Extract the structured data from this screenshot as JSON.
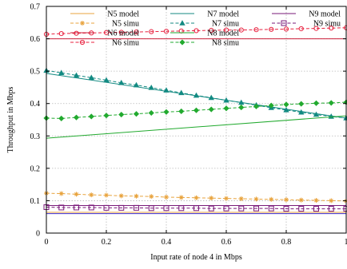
{
  "chart_data": {
    "type": "line",
    "title": "",
    "xlabel": "Input rate of node 4 in Mbps",
    "ylabel": "Throughput in Mbps",
    "xlim": [
      0,
      1
    ],
    "ylim": [
      0,
      0.7
    ],
    "xticks": [
      0,
      0.2,
      0.4,
      0.6,
      0.8,
      1
    ],
    "yticks": [
      0,
      0.1,
      0.2,
      0.3,
      0.4,
      0.5,
      0.6,
      0.7
    ],
    "grid": true,
    "legend": "top, inside plot",
    "series": [
      {
        "name": "N5 model",
        "color": "#e8a33d",
        "style": "solid",
        "marker": "none",
        "x": [
          0,
          1
        ],
        "y": [
          0.064,
          0.064
        ]
      },
      {
        "name": "N5 simu",
        "color": "#e8a33d",
        "style": "dashed",
        "marker": "asterisk",
        "x": [
          0,
          0.05,
          0.1,
          0.15,
          0.2,
          0.25,
          0.3,
          0.35,
          0.4,
          0.45,
          0.5,
          0.55,
          0.6,
          0.65,
          0.7,
          0.75,
          0.8,
          0.85,
          0.9,
          0.95,
          1.0
        ],
        "y": [
          0.123,
          0.122,
          0.12,
          0.118,
          0.117,
          0.115,
          0.114,
          0.113,
          0.111,
          0.11,
          0.109,
          0.108,
          0.107,
          0.106,
          0.105,
          0.104,
          0.103,
          0.102,
          0.101,
          0.1,
          0.099
        ]
      },
      {
        "name": "N6 model",
        "color": "#cc1f3a",
        "style": "solid",
        "marker": "none",
        "x": [
          0,
          1
        ],
        "y": [
          0.6,
          0.6
        ]
      },
      {
        "name": "N6 simu",
        "color": "#e8213f",
        "style": "dashed",
        "marker": "circle",
        "x": [
          0,
          0.05,
          0.1,
          0.15,
          0.2,
          0.25,
          0.3,
          0.35,
          0.4,
          0.45,
          0.5,
          0.55,
          0.6,
          0.65,
          0.7,
          0.75,
          0.8,
          0.85,
          0.9,
          0.95,
          1.0
        ],
        "y": [
          0.614,
          0.616,
          0.617,
          0.618,
          0.619,
          0.62,
          0.621,
          0.622,
          0.623,
          0.624,
          0.625,
          0.626,
          0.627,
          0.627,
          0.628,
          0.629,
          0.63,
          0.631,
          0.632,
          0.633,
          0.634
        ]
      },
      {
        "name": "N7 model",
        "color": "#138a82",
        "style": "solid",
        "marker": "none",
        "x": [
          0,
          1
        ],
        "y": [
          0.493,
          0.355
        ]
      },
      {
        "name": "N7 simu",
        "color": "#138a82",
        "style": "dashed",
        "marker": "triangle",
        "x": [
          0,
          0.05,
          0.1,
          0.15,
          0.2,
          0.25,
          0.3,
          0.35,
          0.4,
          0.45,
          0.5,
          0.55,
          0.6,
          0.65,
          0.7,
          0.75,
          0.8,
          0.85,
          0.9,
          0.95,
          1.0
        ],
        "y": [
          0.502,
          0.495,
          0.487,
          0.48,
          0.472,
          0.464,
          0.457,
          0.449,
          0.441,
          0.433,
          0.425,
          0.418,
          0.41,
          0.403,
          0.395,
          0.387,
          0.38,
          0.373,
          0.366,
          0.36,
          0.355
        ]
      },
      {
        "name": "N8 model",
        "color": "#22aa2f",
        "style": "solid",
        "marker": "none",
        "x": [
          0,
          1
        ],
        "y": [
          0.293,
          0.362
        ]
      },
      {
        "name": "N8 simu",
        "color": "#22aa2f",
        "style": "dashed",
        "marker": "diamond",
        "x": [
          0,
          0.05,
          0.1,
          0.15,
          0.2,
          0.25,
          0.3,
          0.35,
          0.4,
          0.45,
          0.5,
          0.55,
          0.6,
          0.65,
          0.7,
          0.75,
          0.8,
          0.85,
          0.9,
          0.95,
          1.0
        ],
        "y": [
          0.355,
          0.354,
          0.357,
          0.36,
          0.363,
          0.366,
          0.368,
          0.371,
          0.374,
          0.376,
          0.379,
          0.382,
          0.385,
          0.388,
          0.391,
          0.394,
          0.397,
          0.399,
          0.401,
          0.402,
          0.404
        ]
      },
      {
        "name": "N9 model",
        "color": "#7a1a7a",
        "style": "solid",
        "marker": "none",
        "x": [
          0,
          1
        ],
        "y": [
          0.085,
          0.085
        ]
      },
      {
        "name": "N9 simu",
        "color": "#7a1a7a",
        "style": "dashed",
        "marker": "square",
        "x": [
          0,
          0.05,
          0.1,
          0.15,
          0.2,
          0.25,
          0.3,
          0.35,
          0.4,
          0.45,
          0.5,
          0.55,
          0.6,
          0.65,
          0.7,
          0.75,
          0.8,
          0.85,
          0.9,
          0.95,
          1.0
        ],
        "y": [
          0.08,
          0.079,
          0.079,
          0.079,
          0.078,
          0.078,
          0.078,
          0.077,
          0.077,
          0.077,
          0.077,
          0.076,
          0.076,
          0.076,
          0.076,
          0.076,
          0.075,
          0.075,
          0.075,
          0.075,
          0.075
        ]
      },
      {
        "name": "",
        "color": "#3a2bd1",
        "style": "solid",
        "marker": "none",
        "x": [
          0,
          1
        ],
        "y": [
          0.06,
          0.06
        ]
      }
    ]
  }
}
